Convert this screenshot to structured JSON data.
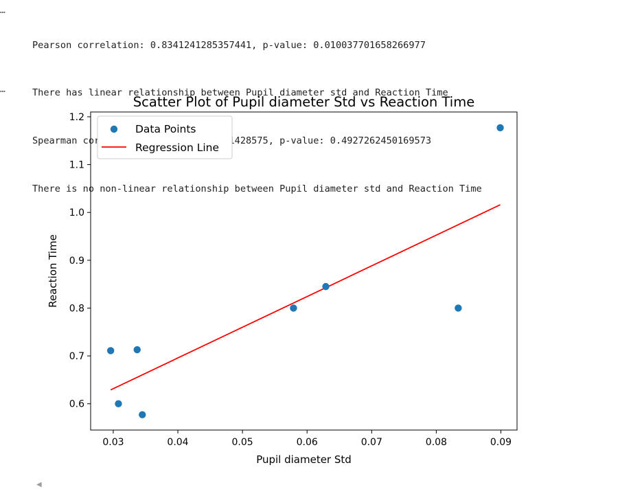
{
  "output": {
    "prompt_glyph": "…",
    "lines": [
      "Pearson correlation: 0.8341241285357441, p-value: 0.010037701658266977",
      "There has linear relationship between Pupil diameter std and Reaction Time",
      "Spearman correlation: -0.28571428571428575, p-value: 0.4927262450169573",
      "There is no non-linear relationship between Pupil diameter std and Reaction Time"
    ],
    "scroll_arrow": "◀"
  },
  "chart_data": {
    "type": "scatter",
    "title": "Scatter Plot of Pupil diameter Std vs Reaction Time",
    "xlabel": "Pupil diameter Std",
    "ylabel": "Reaction Time",
    "xlim": [
      0.0265,
      0.0925
    ],
    "ylim": [
      0.545,
      1.21
    ],
    "xticks": [
      0.03,
      0.04,
      0.05,
      0.06,
      0.07,
      0.08,
      0.09
    ],
    "xtick_labels": [
      "0.03",
      "0.04",
      "0.05",
      "0.06",
      "0.07",
      "0.08",
      "0.09"
    ],
    "yticks": [
      0.6,
      0.7,
      0.8,
      0.9,
      1.0,
      1.1,
      1.2
    ],
    "ytick_labels": [
      "0.6",
      "0.7",
      "0.8",
      "0.9",
      "1.0",
      "1.1",
      "1.2"
    ],
    "grid": false,
    "legend_position": "upper-left",
    "series": [
      {
        "name": "Data Points",
        "kind": "scatter",
        "color": "#1f77b4",
        "points": [
          {
            "x": 0.0296,
            "y": 0.711
          },
          {
            "x": 0.0308,
            "y": 0.6
          },
          {
            "x": 0.0337,
            "y": 0.713
          },
          {
            "x": 0.0345,
            "y": 0.577
          },
          {
            "x": 0.0579,
            "y": 0.8
          },
          {
            "x": 0.0629,
            "y": 0.845
          },
          {
            "x": 0.0834,
            "y": 0.8
          },
          {
            "x": 0.0899,
            "y": 1.177
          }
        ]
      },
      {
        "name": "Regression Line",
        "kind": "line",
        "color": "#ff0000",
        "points": [
          {
            "x": 0.0296,
            "y": 0.629
          },
          {
            "x": 0.0899,
            "y": 1.016
          }
        ]
      }
    ]
  }
}
